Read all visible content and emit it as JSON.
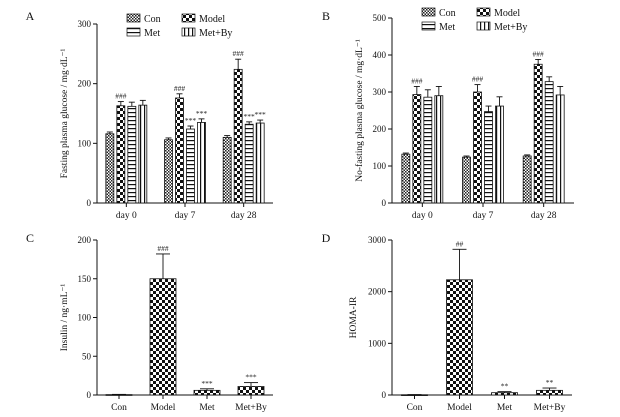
{
  "colors": {
    "ink": "#111111",
    "paper": "#ffffff"
  },
  "legend": {
    "con": "Con",
    "model": "Model",
    "met": "Met",
    "metby": "Met+By"
  },
  "chart_data": [
    {
      "panel": "A",
      "type": "bar",
      "ylabel": "Fasting plasma glucose / mg·dL⁻¹",
      "ylim": [
        0,
        300
      ],
      "yticks": [
        0,
        100,
        200,
        300
      ],
      "categories": [
        "day 0",
        "day 7",
        "day 28"
      ],
      "series": [
        {
          "name": "Con",
          "values": [
            116,
            106,
            110
          ],
          "err": [
            3,
            3,
            3
          ]
        },
        {
          "name": "Model",
          "values": [
            163,
            176,
            224
          ],
          "err": [
            7,
            7,
            17
          ]
        },
        {
          "name": "Met",
          "values": [
            162,
            124,
            132
          ],
          "err": [
            7,
            5,
            4
          ]
        },
        {
          "name": "Met+By",
          "values": [
            164,
            135,
            134
          ],
          "err": [
            8,
            6,
            5
          ]
        }
      ],
      "annotations": [
        {
          "cat": 0,
          "series": 1,
          "text": "###"
        },
        {
          "cat": 1,
          "series": 1,
          "text": "###"
        },
        {
          "cat": 1,
          "series": 2,
          "text": "***"
        },
        {
          "cat": 1,
          "series": 3,
          "text": "***"
        },
        {
          "cat": 2,
          "series": 1,
          "text": "###"
        },
        {
          "cat": 2,
          "series": 2,
          "text": "***"
        },
        {
          "cat": 2,
          "series": 3,
          "text": "***"
        }
      ],
      "legend": true
    },
    {
      "panel": "B",
      "type": "bar",
      "ylabel": "No-fasting plasma glucose / mg·dL⁻¹",
      "ylim": [
        0,
        500
      ],
      "yticks": [
        0,
        100,
        200,
        300,
        400,
        500
      ],
      "categories": [
        "day 0",
        "day 7",
        "day 28"
      ],
      "series": [
        {
          "name": "Con",
          "values": [
            132,
            124,
            127
          ],
          "err": [
            3,
            3,
            3
          ]
        },
        {
          "name": "Model",
          "values": [
            293,
            300,
            375
          ],
          "err": [
            22,
            20,
            13
          ]
        },
        {
          "name": "Met",
          "values": [
            286,
            247,
            328
          ],
          "err": [
            20,
            15,
            13
          ]
        },
        {
          "name": "Met+By",
          "values": [
            290,
            262,
            292
          ],
          "err": [
            25,
            25,
            23
          ]
        }
      ],
      "annotations": [
        {
          "cat": 0,
          "series": 1,
          "text": "###"
        },
        {
          "cat": 1,
          "series": 1,
          "text": "###"
        },
        {
          "cat": 2,
          "series": 1,
          "text": "###"
        }
      ],
      "legend": true
    },
    {
      "panel": "C",
      "type": "bar",
      "ylabel": "Insulin / ng·mL⁻¹",
      "ylim": [
        0,
        200
      ],
      "yticks": [
        0,
        50,
        100,
        150,
        200
      ],
      "categories": [
        "Con",
        "Model",
        "Met",
        "Met+By"
      ],
      "values": [
        0.5,
        150,
        6,
        11
      ],
      "err": [
        0.3,
        32,
        2,
        5
      ],
      "annotations": [
        "",
        "###",
        "***",
        "***"
      ],
      "legend": false
    },
    {
      "panel": "D",
      "type": "bar",
      "ylabel": "HOMA-IR",
      "ylim": [
        0,
        3000
      ],
      "yticks": [
        0,
        1000,
        2000,
        3000
      ],
      "categories": [
        "Con",
        "Model",
        "Met",
        "Met+By"
      ],
      "values": [
        5,
        2230,
        45,
        90
      ],
      "err": [
        3,
        590,
        20,
        45
      ],
      "annotations": [
        "",
        "##",
        "**",
        "**"
      ],
      "legend": false
    }
  ]
}
